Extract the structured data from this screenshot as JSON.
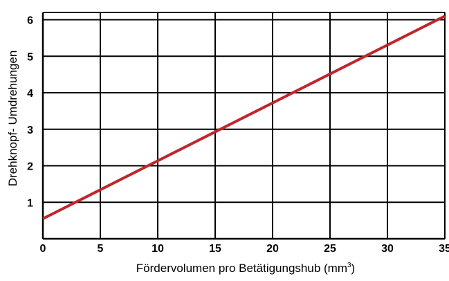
{
  "chart_data": {
    "type": "line",
    "xlabel": "Fördervolumen pro Betätigungshub (mm",
    "xlabel_sup": "3",
    "xlabel_end": ")",
    "ylabel": "Drehknopf- Umdrehungen",
    "xlim": [
      0,
      35
    ],
    "ylim": [
      0,
      6.2
    ],
    "x_ticks": [
      0,
      5,
      10,
      15,
      20,
      25,
      30,
      35
    ],
    "y_ticks": [
      1,
      2,
      3,
      4,
      5,
      6
    ],
    "grid": true,
    "series": [
      {
        "color": "#c0262b",
        "x": [
          0,
          35
        ],
        "y": [
          0.55,
          6.1
        ]
      }
    ]
  }
}
